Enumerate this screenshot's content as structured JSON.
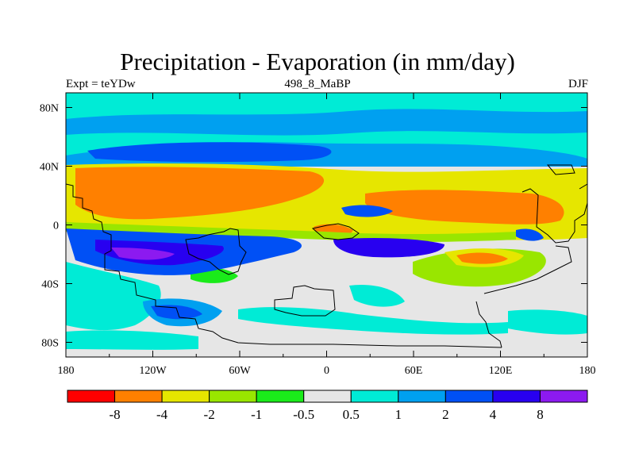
{
  "header": {
    "title": "Precipitation - Evaporation (in mm/day)",
    "left_label": "Expt = teYDw",
    "center_label": "498_8_MaBP",
    "right_label": "DJF"
  },
  "map": {
    "lon_ticks": [
      "180",
      "120W",
      "60W",
      "0",
      "60E",
      "120E",
      "180"
    ],
    "lat_ticks": [
      "80N",
      "40N",
      "0",
      "40S",
      "80S"
    ]
  },
  "legend": {
    "colors": [
      "#ff0000",
      "#ff8000",
      "#e6e600",
      "#99e600",
      "#1aeb1a",
      "#e6e6e6",
      "#00ebd6",
      "#00a0f0",
      "#0050f5",
      "#2800f0",
      "#8c1af0"
    ],
    "labels": [
      "-8",
      "-4",
      "-2",
      "-1",
      "-0.5",
      "0.5",
      "1",
      "2",
      "4",
      "8"
    ]
  },
  "colors": {
    "no_data": "#e6e6e6",
    "coastline": "#000000"
  }
}
